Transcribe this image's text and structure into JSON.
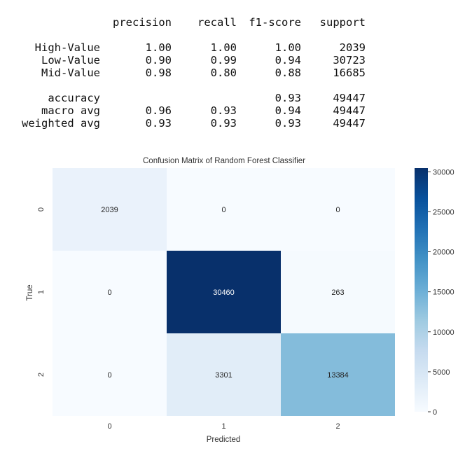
{
  "report": {
    "header": [
      "precision",
      "recall",
      "f1-score",
      "support"
    ],
    "rows": [
      {
        "label": "High-Value",
        "precision": "1.00",
        "recall": "1.00",
        "f1": "1.00",
        "support": "2039"
      },
      {
        "label": "Low-Value",
        "precision": "0.90",
        "recall": "0.99",
        "f1": "0.94",
        "support": "30723"
      },
      {
        "label": "Mid-Value",
        "precision": "0.98",
        "recall": "0.80",
        "f1": "0.88",
        "support": "16685"
      }
    ],
    "summary": [
      {
        "label": "accuracy",
        "precision": "",
        "recall": "",
        "f1": "0.93",
        "support": "49447"
      },
      {
        "label": "macro avg",
        "precision": "0.96",
        "recall": "0.93",
        "f1": "0.94",
        "support": "49447"
      },
      {
        "label": "weighted avg",
        "precision": "0.93",
        "recall": "0.93",
        "f1": "0.93",
        "support": "49447"
      }
    ]
  },
  "chart_data": {
    "type": "heatmap",
    "title": "Confusion Matrix of Random Forest Classifier",
    "xlabel": "Predicted",
    "ylabel": "True",
    "x_categories": [
      "0",
      "1",
      "2"
    ],
    "y_categories": [
      "0",
      "1",
      "2"
    ],
    "matrix": [
      [
        2039,
        0,
        0
      ],
      [
        0,
        30460,
        263
      ],
      [
        0,
        3301,
        13384
      ]
    ],
    "colormap": "Blues",
    "colorbar": {
      "min": 0,
      "max": 30460,
      "ticks": [
        0,
        5000,
        10000,
        15000,
        20000,
        25000,
        30000
      ]
    }
  }
}
